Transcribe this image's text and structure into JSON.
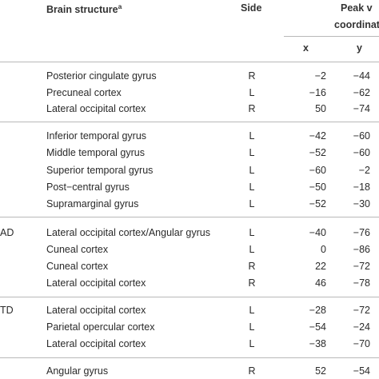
{
  "headers": {
    "brain_structure": "Brain structure",
    "brain_structure_sup": "a",
    "side": "Side",
    "peak_line1": "Peak v",
    "peak_line2": "coordinat",
    "x": "x",
    "y": "y"
  },
  "groups": [
    {
      "label": "",
      "rows": [
        {
          "structure": "Posterior cingulate gyrus",
          "side": "R",
          "x": "−2",
          "y": "−44"
        },
        {
          "structure": "Precuneal cortex",
          "side": "L",
          "x": "−16",
          "y": "−62"
        },
        {
          "structure": "Lateral occipital cortex",
          "side": "R",
          "x": "50",
          "y": "−74"
        }
      ]
    },
    {
      "label": "",
      "rows": [
        {
          "structure": "Inferior temporal gyrus",
          "side": "L",
          "x": "−42",
          "y": "−60"
        },
        {
          "structure": "Middle temporal gyrus",
          "side": "L",
          "x": "−52",
          "y": "−60"
        },
        {
          "structure": "Superior temporal gyrus",
          "side": "L",
          "x": "−60",
          "y": "−2"
        },
        {
          "structure": "Post−central gyrus",
          "side": "L",
          "x": "−50",
          "y": "−18"
        },
        {
          "structure": "Supramarginal gyrus",
          "side": "L",
          "x": "−52",
          "y": "−30"
        }
      ]
    },
    {
      "label": "AD",
      "rows": [
        {
          "structure": "Lateral occipital cortex/Angular gyrus",
          "side": "L",
          "x": "−40",
          "y": "−76"
        },
        {
          "structure": "Cuneal cortex",
          "side": "L",
          "x": "0",
          "y": "−86"
        },
        {
          "structure": "Cuneal cortex",
          "side": "R",
          "x": "22",
          "y": "−72"
        },
        {
          "structure": "Lateral occipital cortex",
          "side": "R",
          "x": "46",
          "y": "−78"
        }
      ]
    },
    {
      "label": "TD",
      "rows": [
        {
          "structure": "Lateral occipital cortex",
          "side": "L",
          "x": "−28",
          "y": "−72"
        },
        {
          "structure": "Parietal opercular cortex",
          "side": "L",
          "x": "−54",
          "y": "−24"
        },
        {
          "structure": "Lateral occipital cortex",
          "side": "L",
          "x": "−38",
          "y": "−70"
        }
      ]
    },
    {
      "label": "",
      "rows": [
        {
          "structure": "Angular gyrus",
          "side": "R",
          "x": "52",
          "y": "−54"
        }
      ]
    }
  ]
}
